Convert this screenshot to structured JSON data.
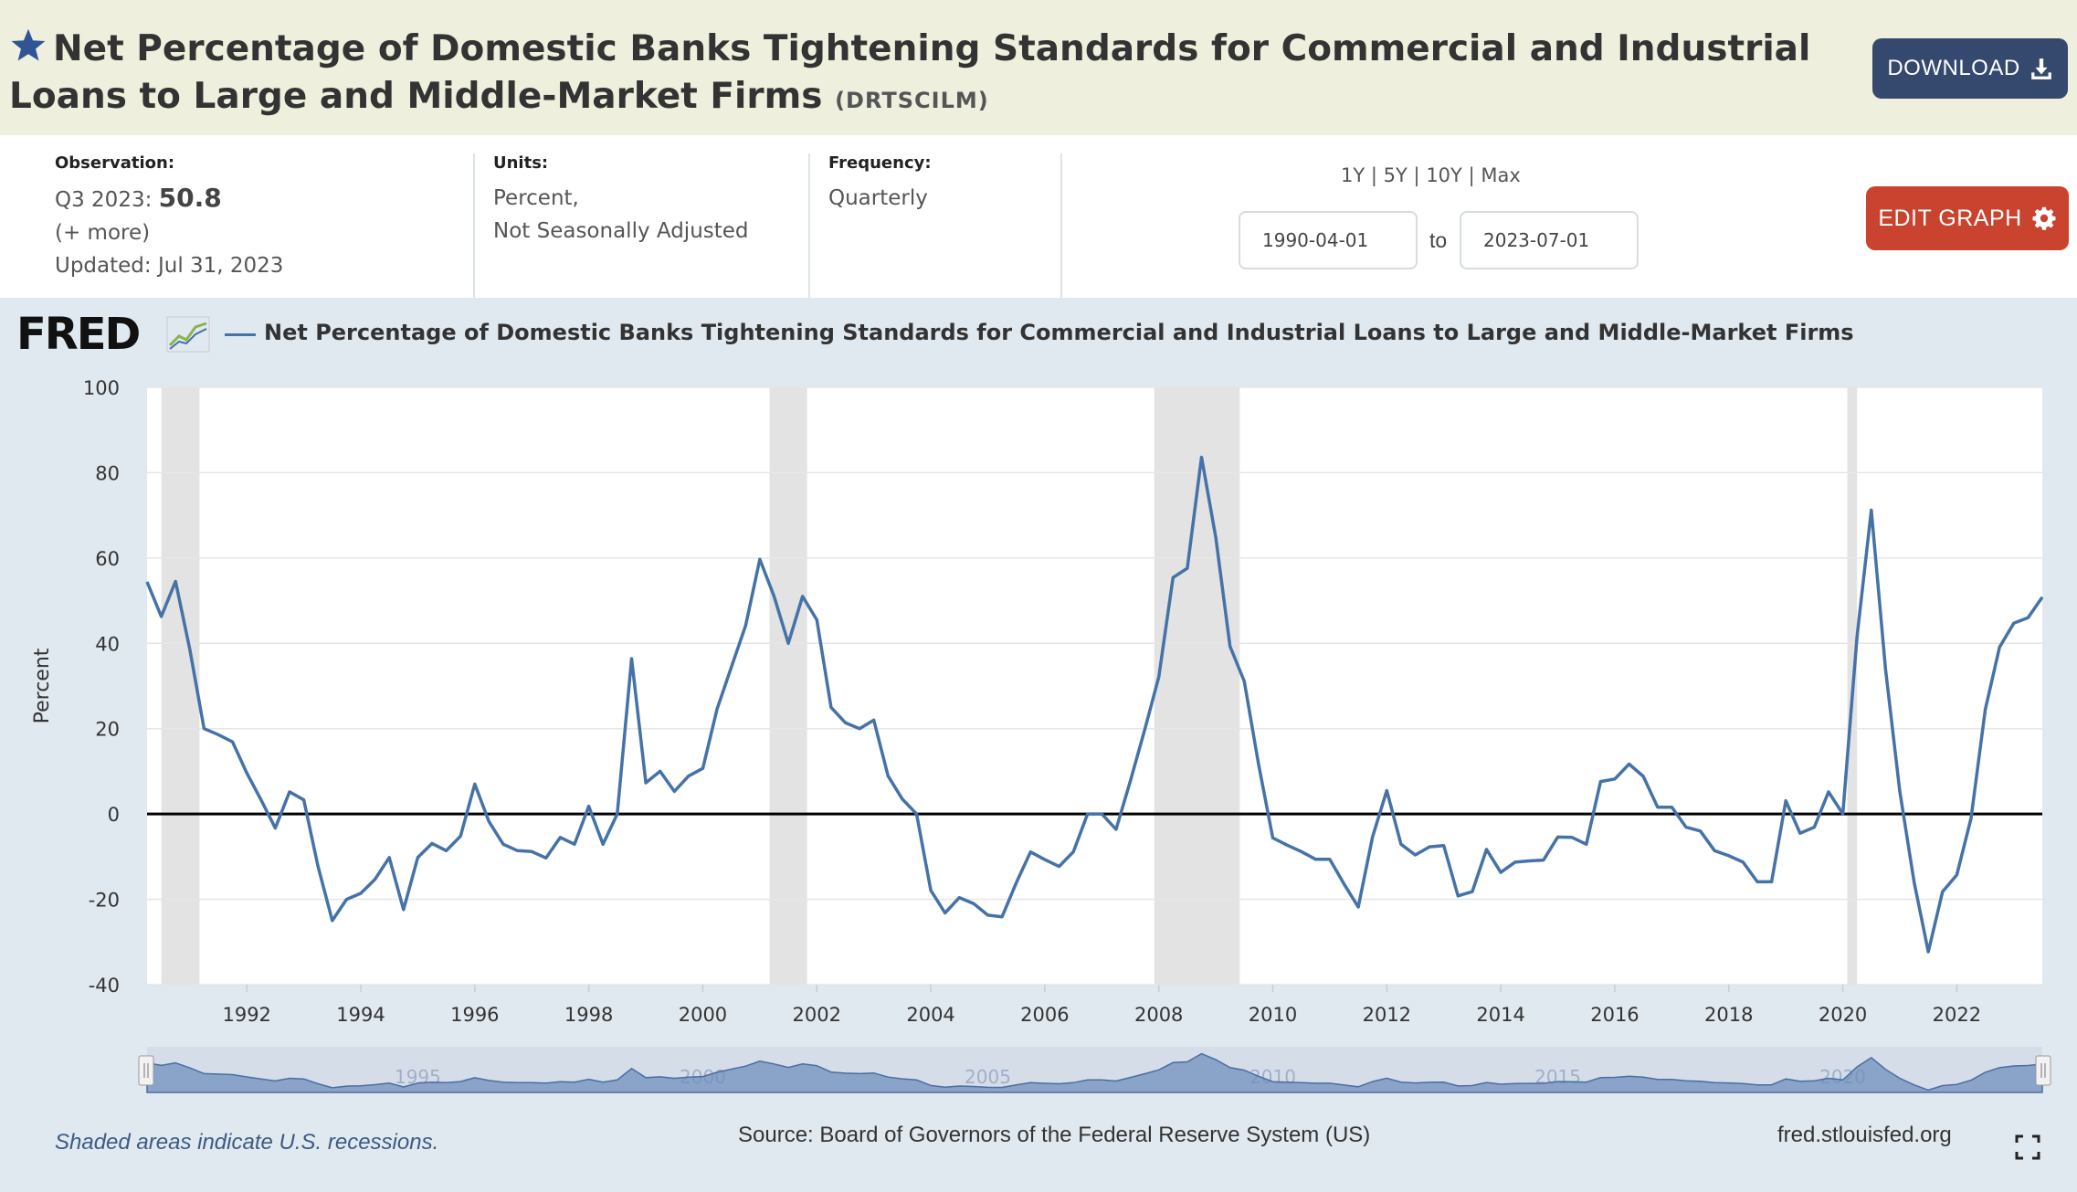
{
  "header": {
    "title": "Net Percentage of Domestic Banks Tightening Standards for Commercial and Industrial Loans to Large and Middle-Market Firms",
    "series_id": "(DRTSCILM)",
    "download_label": "DOWNLOAD",
    "favorite_icon": "star-icon",
    "download_icon": "download-icon",
    "colors": {
      "header_bg": "#eef0dd",
      "download_bg": "#35496e",
      "edit_bg": "#c9432e"
    }
  },
  "meta": {
    "observation_label": "Observation:",
    "observation_period": "Q3 2023:",
    "observation_value": "50.8",
    "more_link": "(+ more)",
    "updated": "Updated: Jul 31, 2023",
    "units_label": "Units:",
    "units_line1": "Percent,",
    "units_line2": "Not Seasonally Adjusted",
    "frequency_label": "Frequency:",
    "frequency_value": "Quarterly"
  },
  "range": {
    "links": [
      "1Y",
      "5Y",
      "10Y",
      "Max"
    ],
    "separator": "|",
    "start": "1990-04-01",
    "to_label": "to",
    "end": "2023-07-01"
  },
  "edit_graph_label": "EDIT GRAPH",
  "edit_icon": "gear-icon",
  "logo_text": "FRED",
  "chart_data": {
    "type": "line",
    "title": "Net Percentage of Domestic Banks Tightening Standards for Commercial and Industrial Loans to Large and Middle-Market Firms",
    "ylabel": "Percent",
    "ylim": [
      -40,
      100
    ],
    "yticks": [
      -40,
      -20,
      0,
      20,
      40,
      60,
      80,
      100
    ],
    "xlim": [
      1990.25,
      2023.5
    ],
    "xticks": [
      1992,
      1994,
      1996,
      1998,
      2000,
      2002,
      2004,
      2006,
      2008,
      2010,
      2012,
      2014,
      2016,
      2018,
      2020,
      2022
    ],
    "grid": true,
    "line_color": "#4572a7",
    "zero_line": true,
    "recessions": [
      [
        1990.5,
        1991.17
      ],
      [
        2001.17,
        2001.83
      ],
      [
        2007.92,
        2009.42
      ],
      [
        2020.08,
        2020.25
      ]
    ],
    "navigator_labels": [
      "1995",
      "2000",
      "2005",
      "2010",
      "2015",
      "2020"
    ],
    "series": [
      {
        "name": "Net Percentage of Domestic Banks Tightening Standards for Commercial and Industrial Loans to Large and Middle-Market Firms",
        "x": [
          1990.25,
          1990.5,
          1990.75,
          1991.0,
          1991.25,
          1991.5,
          1991.75,
          1992.0,
          1992.25,
          1992.5,
          1992.75,
          1993.0,
          1993.25,
          1993.5,
          1993.75,
          1994.0,
          1994.25,
          1994.5,
          1994.75,
          1995.0,
          1995.25,
          1995.5,
          1995.75,
          1996.0,
          1996.25,
          1996.5,
          1996.75,
          1997.0,
          1997.25,
          1997.5,
          1997.75,
          1998.0,
          1998.25,
          1998.5,
          1998.75,
          1999.0,
          1999.25,
          1999.5,
          1999.75,
          2000.0,
          2000.25,
          2000.5,
          2000.75,
          2001.0,
          2001.25,
          2001.5,
          2001.75,
          2002.0,
          2002.25,
          2002.5,
          2002.75,
          2003.0,
          2003.25,
          2003.5,
          2003.75,
          2004.0,
          2004.25,
          2004.5,
          2004.75,
          2005.0,
          2005.25,
          2005.5,
          2005.75,
          2006.0,
          2006.25,
          2006.5,
          2006.75,
          2007.0,
          2007.25,
          2007.5,
          2007.75,
          2008.0,
          2008.25,
          2008.5,
          2008.75,
          2009.0,
          2009.25,
          2009.5,
          2009.75,
          2010.0,
          2010.25,
          2010.5,
          2010.75,
          2011.0,
          2011.25,
          2011.5,
          2011.75,
          2012.0,
          2012.25,
          2012.5,
          2012.75,
          2013.0,
          2013.25,
          2013.5,
          2013.75,
          2014.0,
          2014.25,
          2014.5,
          2014.75,
          2015.0,
          2015.25,
          2015.5,
          2015.75,
          2016.0,
          2016.25,
          2016.5,
          2016.75,
          2017.0,
          2017.25,
          2017.5,
          2017.75,
          2018.0,
          2018.25,
          2018.5,
          2018.75,
          2019.0,
          2019.25,
          2019.5,
          2019.75,
          2020.0,
          2020.25,
          2020.5,
          2020.75,
          2021.0,
          2021.25,
          2021.5,
          2021.75,
          2022.0,
          2022.25,
          2022.5,
          2022.75,
          2023.0,
          2023.25,
          2023.5
        ],
        "y": [
          54.4,
          46.3,
          54.5,
          38.6,
          20.0,
          18.6,
          16.9,
          9.6,
          3.3,
          -3.3,
          5.2,
          3.3,
          -12.3,
          -25.0,
          -20.0,
          -18.6,
          -15.3,
          -10.2,
          -22.4,
          -10.2,
          -6.9,
          -8.6,
          -5.2,
          7.0,
          -1.8,
          -7.1,
          -8.6,
          -8.8,
          -10.3,
          -5.5,
          -7.1,
          1.8,
          -7.1,
          0.0,
          36.4,
          7.3,
          10.0,
          5.3,
          8.9,
          10.7,
          24.6,
          34.4,
          44.1,
          59.7,
          51.0,
          40.0,
          51.0,
          45.5,
          25.0,
          21.4,
          20.0,
          22.0,
          8.9,
          3.5,
          0.0,
          -17.9,
          -23.2,
          -19.6,
          -21.0,
          -23.7,
          -24.1,
          -16.1,
          -8.9,
          -10.7,
          -12.3,
          -8.9,
          0.0,
          0.0,
          -3.6,
          7.7,
          19.6,
          32.1,
          55.4,
          57.6,
          83.6,
          64.8,
          39.3,
          31.1,
          11.7,
          -5.6,
          -7.3,
          -8.8,
          -10.6,
          -10.6,
          -16.4,
          -21.8,
          -5.4,
          5.5,
          -7.1,
          -9.6,
          -7.7,
          -7.4,
          -19.2,
          -18.2,
          -8.3,
          -13.7,
          -11.3,
          -11.0,
          -10.8,
          -5.4,
          -5.5,
          -7.1,
          7.6,
          8.2,
          11.7,
          8.8,
          1.6,
          1.6,
          -3.1,
          -4.0,
          -8.6,
          -9.8,
          -11.3,
          -15.9,
          -15.9,
          3.1,
          -4.5,
          -3.1,
          5.2,
          -0.0,
          41.6,
          71.2,
          33.9,
          5.3,
          -15.9,
          -32.3,
          -18.2,
          -14.3,
          -1.0,
          24.5,
          39.1,
          44.7,
          46.0,
          50.8
        ]
      }
    ]
  },
  "footer": {
    "recession_note": "Shaded areas indicate U.S. recessions.",
    "source": "Source: Board of Governors of the Federal Reserve System (US)",
    "site": "fred.stlouisfed.org",
    "fullscreen_icon": "fullscreen-icon"
  }
}
